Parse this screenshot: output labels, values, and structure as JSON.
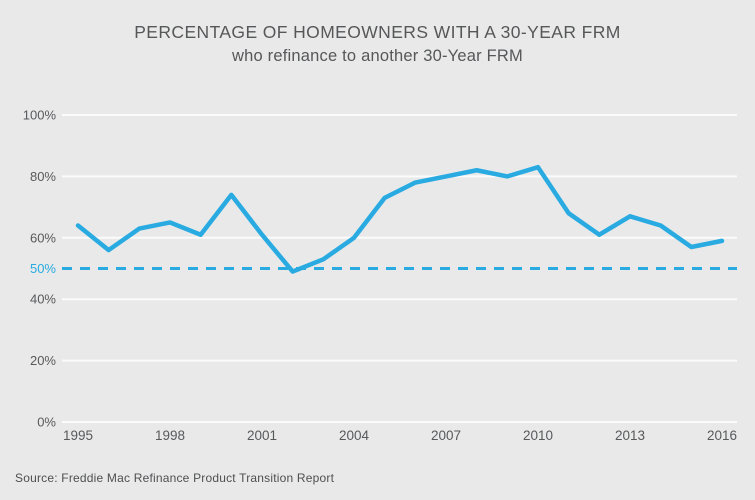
{
  "header": {
    "title": "PERCENTAGE OF HOMEOWNERS WITH A 30-YEAR FRM",
    "subtitle": "who refinance to another 30-Year FRM"
  },
  "footer": {
    "source": "Source: Freddie Mac Refinance Product Transition Report"
  },
  "chart_data": {
    "type": "line",
    "title": "PERCENTAGE OF HOMEOWNERS WITH A 30-YEAR FRM",
    "subtitle": "who refinance to another 30-Year FRM",
    "x": [
      1995,
      1996,
      1997,
      1998,
      1999,
      2000,
      2001,
      2002,
      2003,
      2004,
      2005,
      2006,
      2007,
      2008,
      2009,
      2010,
      2011,
      2012,
      2013,
      2014,
      2015,
      2016
    ],
    "values": [
      64,
      56,
      63,
      65,
      61,
      74,
      61,
      49,
      53,
      60,
      73,
      78,
      80,
      82,
      80,
      83,
      68,
      61,
      67,
      64,
      57,
      59
    ],
    "unit": "%",
    "ylim": [
      0,
      100
    ],
    "y_ticks": [
      0,
      20,
      40,
      60,
      80,
      100
    ],
    "y_tick_suffix": "%",
    "x_ticks": [
      1995,
      1998,
      2001,
      2004,
      2007,
      2010,
      2013,
      2016
    ],
    "reference_line": {
      "value": 50,
      "label": "50%",
      "style": "dashed"
    },
    "grid": true,
    "legend": "none",
    "colors": {
      "line": "#29abe2",
      "reference": "#29abe2",
      "grid": "#ffffff",
      "text": "#58595b",
      "background": "#e9e9e9"
    }
  }
}
